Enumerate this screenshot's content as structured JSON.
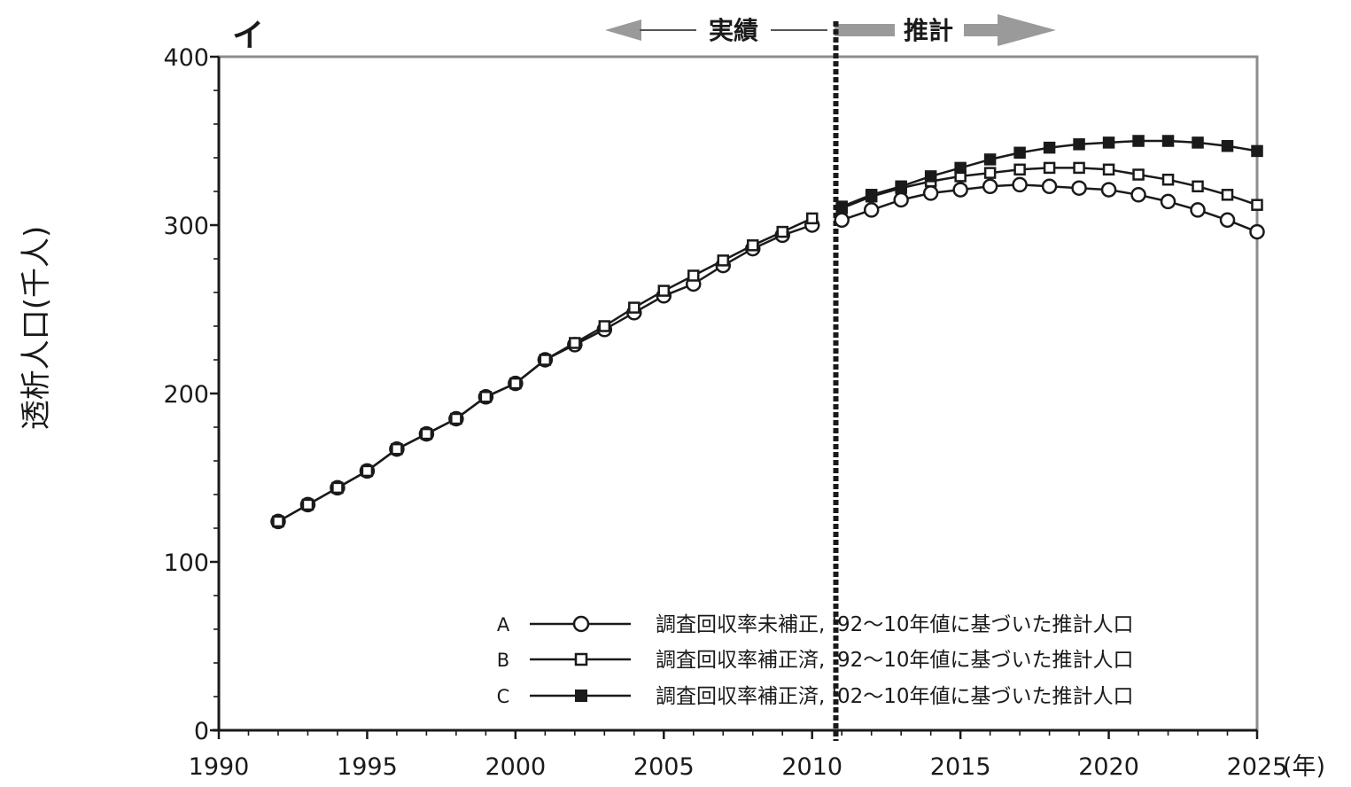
{
  "panel_label": "イ",
  "phase_actual": "実績",
  "phase_projection": "推計",
  "y_label": "透析人口(千人)",
  "x_unit": "(年)",
  "chart_data": {
    "type": "line",
    "xlim": [
      1990,
      2025
    ],
    "ylim": [
      0,
      400
    ],
    "x_ticks": [
      "1990",
      "1995",
      "2000",
      "2005",
      "2010",
      "2015",
      "2020",
      "2025"
    ],
    "y_ticks": [
      "0",
      "100",
      "200",
      "300",
      "400"
    ],
    "divider_year": 2010.8,
    "historical": {
      "x": [
        1992,
        1993,
        1994,
        1995,
        1996,
        1997,
        1998,
        1999,
        2000,
        2001,
        2002,
        2003,
        2004,
        2005,
        2006,
        2007,
        2008,
        2009,
        2010
      ],
      "A": [
        124,
        134,
        144,
        154,
        167,
        176,
        185,
        198,
        206,
        220,
        229,
        238,
        248,
        258,
        265,
        276,
        286,
        294,
        300
      ],
      "B": [
        124,
        134,
        144,
        154,
        167,
        176,
        185,
        198,
        206,
        220,
        230,
        240,
        251,
        261,
        270,
        279,
        288,
        296,
        304
      ]
    },
    "series": [
      {
        "key": "A",
        "name": "調査回収率未補正, '92～10年値に基づいた推計人口",
        "x": [
          2011,
          2012,
          2013,
          2014,
          2015,
          2016,
          2017,
          2018,
          2019,
          2020,
          2021,
          2022,
          2023,
          2024,
          2025
        ],
        "values": [
          303,
          309,
          315,
          319,
          321,
          323,
          324,
          323,
          322,
          321,
          318,
          314,
          309,
          303,
          296
        ]
      },
      {
        "key": "B",
        "name": "調査回収率補正済, '92～10年値に基づいた推計人口",
        "x": [
          2011,
          2012,
          2013,
          2014,
          2015,
          2016,
          2017,
          2018,
          2019,
          2020,
          2021,
          2022,
          2023,
          2024,
          2025
        ],
        "values": [
          310,
          317,
          322,
          326,
          329,
          331,
          333,
          334,
          334,
          333,
          330,
          327,
          323,
          318,
          312
        ]
      },
      {
        "key": "C",
        "name": "調査回収率補正済, '02～10年値に基づいた推計人口",
        "x": [
          2011,
          2012,
          2013,
          2014,
          2015,
          2016,
          2017,
          2018,
          2019,
          2020,
          2021,
          2022,
          2023,
          2024,
          2025
        ],
        "values": [
          311,
          318,
          323,
          329,
          334,
          339,
          343,
          346,
          348,
          349,
          350,
          350,
          349,
          347,
          344
        ]
      }
    ]
  }
}
